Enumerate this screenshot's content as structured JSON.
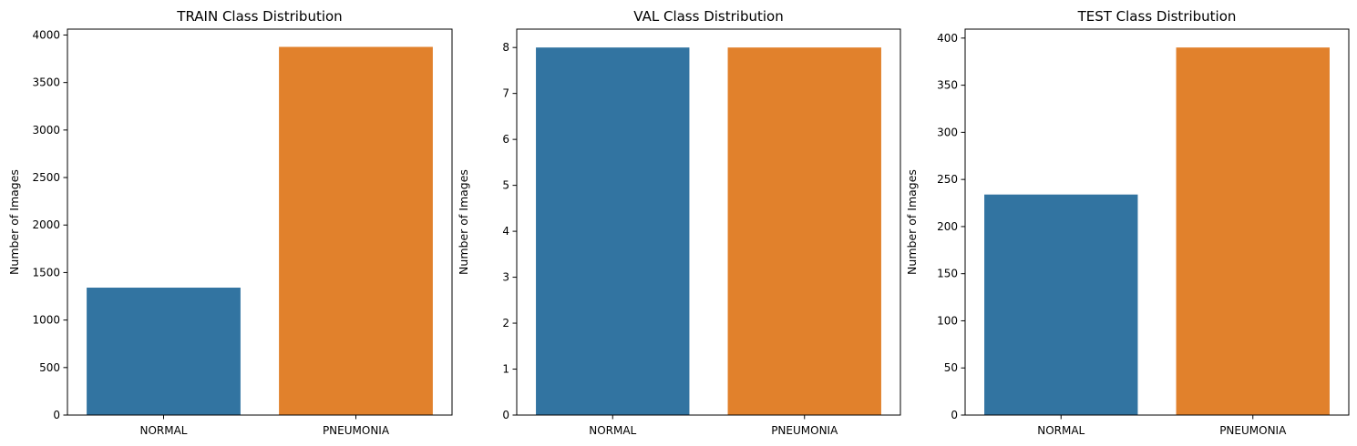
{
  "chart_data": [
    {
      "type": "bar",
      "title": "TRAIN Class Distribution",
      "xlabel": "",
      "ylabel": "Number of Images",
      "categories": [
        "NORMAL",
        "PNEUMONIA"
      ],
      "values": [
        1341,
        3875
      ],
      "ylim": [
        0,
        4062
      ],
      "yticks": [
        0,
        500,
        1000,
        1500,
        2000,
        2500,
        3000,
        3500,
        4000
      ],
      "colors": [
        "#3274a1",
        "#e1812c"
      ]
    },
    {
      "type": "bar",
      "title": "VAL Class Distribution",
      "xlabel": "",
      "ylabel": "Number of Images",
      "categories": [
        "NORMAL",
        "PNEUMONIA"
      ],
      "values": [
        8,
        8
      ],
      "ylim": [
        0,
        8.4
      ],
      "yticks": [
        0,
        1,
        2,
        3,
        4,
        5,
        6,
        7,
        8
      ],
      "colors": [
        "#3274a1",
        "#e1812c"
      ]
    },
    {
      "type": "bar",
      "title": "TEST Class Distribution",
      "xlabel": "",
      "ylabel": "Number of Images",
      "categories": [
        "NORMAL",
        "PNEUMONIA"
      ],
      "values": [
        234,
        390
      ],
      "ylim": [
        0,
        409.5
      ],
      "yticks": [
        0,
        50,
        100,
        150,
        200,
        250,
        300,
        350,
        400
      ],
      "colors": [
        "#3274a1",
        "#e1812c"
      ]
    }
  ]
}
